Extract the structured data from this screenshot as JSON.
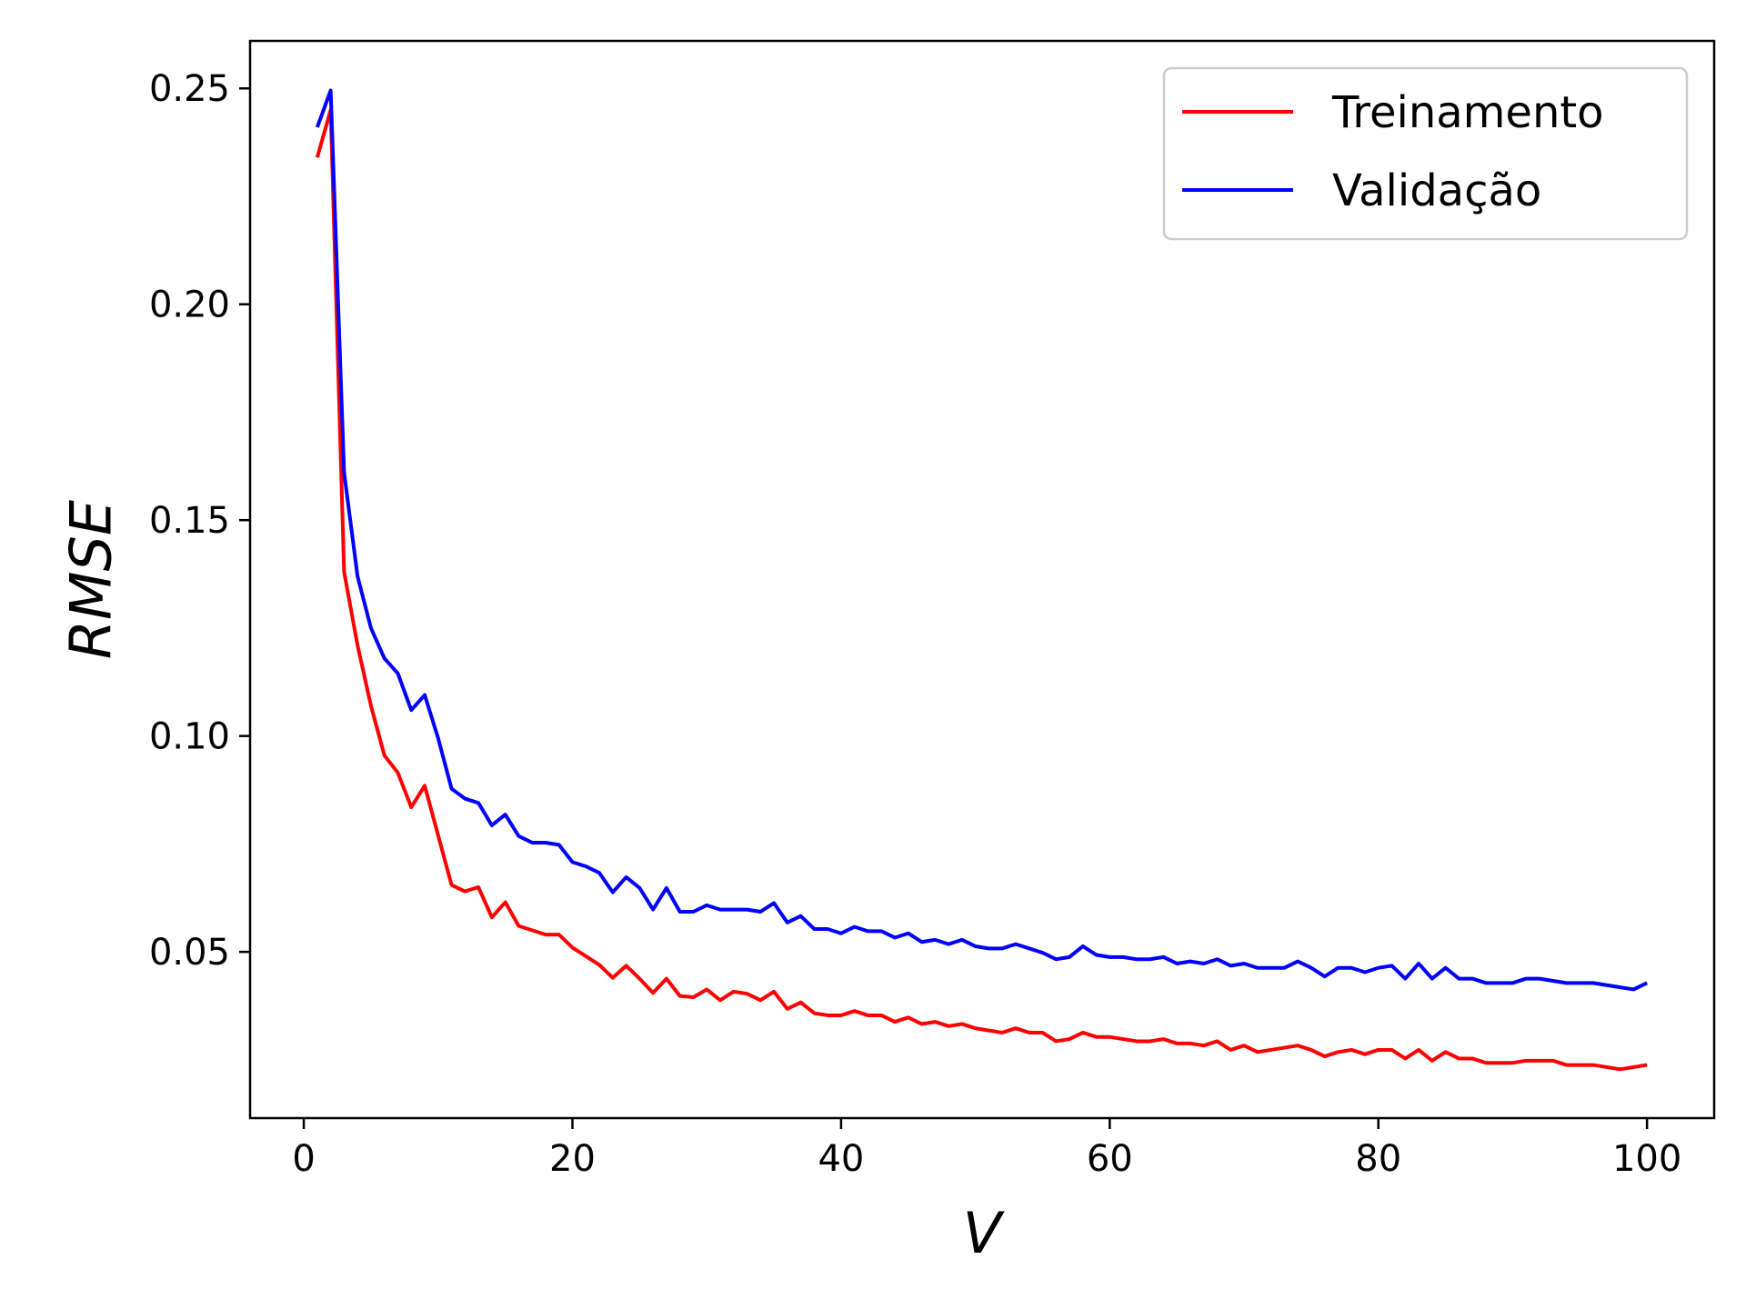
{
  "chart_data": {
    "type": "line",
    "title": "",
    "xlabel": "V",
    "ylabel": "RMSE",
    "xlim": [
      -4,
      105
    ],
    "ylim": [
      0.0115,
      0.261
    ],
    "xticks": [
      0,
      20,
      40,
      60,
      80,
      100
    ],
    "xtick_labels": [
      "0",
      "20",
      "40",
      "60",
      "80",
      "100"
    ],
    "yticks": [
      0.05,
      0.1,
      0.15,
      0.2,
      0.25
    ],
    "ytick_labels": [
      "0.05",
      "0.10",
      "0.15",
      "0.20",
      "0.25"
    ],
    "grid": false,
    "legend_position": "top-right",
    "series": [
      {
        "name": "Treinamento",
        "color": "#ff0000",
        "x": [
          1,
          2,
          3,
          4,
          5,
          6,
          7,
          8,
          9,
          10,
          11,
          12,
          13,
          14,
          15,
          16,
          17,
          18,
          19,
          20,
          21,
          22,
          23,
          24,
          25,
          26,
          27,
          28,
          29,
          30,
          31,
          32,
          33,
          34,
          35,
          36,
          37,
          38,
          39,
          40,
          41,
          42,
          43,
          44,
          45,
          46,
          47,
          48,
          49,
          50,
          51,
          52,
          53,
          54,
          55,
          56,
          57,
          58,
          59,
          60,
          61,
          62,
          63,
          64,
          65,
          66,
          67,
          68,
          69,
          70,
          71,
          72,
          73,
          74,
          75,
          76,
          77,
          78,
          79,
          80,
          81,
          82,
          83,
          84,
          85,
          86,
          87,
          88,
          89,
          90,
          91,
          92,
          93,
          94,
          95,
          96,
          97,
          98,
          99,
          100
        ],
        "values": [
          0.234,
          0.245,
          0.138,
          0.121,
          0.107,
          0.0955,
          0.0915,
          0.0835,
          0.0885,
          0.077,
          0.0655,
          0.064,
          0.065,
          0.058,
          0.0615,
          0.056,
          0.055,
          0.054,
          0.054,
          0.051,
          0.049,
          0.047,
          0.044,
          0.0468,
          0.0438,
          0.0405,
          0.0438,
          0.0398,
          0.0395,
          0.0413,
          0.0388,
          0.0408,
          0.0403,
          0.0388,
          0.0408,
          0.0368,
          0.0383,
          0.0358,
          0.0353,
          0.0353,
          0.0363,
          0.0353,
          0.0353,
          0.0338,
          0.0348,
          0.0333,
          0.0338,
          0.0328,
          0.0333,
          0.0323,
          0.0318,
          0.0313,
          0.0323,
          0.0313,
          0.0313,
          0.0293,
          0.0298,
          0.0313,
          0.0303,
          0.0303,
          0.0298,
          0.0293,
          0.0293,
          0.0298,
          0.0288,
          0.0288,
          0.0283,
          0.0293,
          0.0273,
          0.0283,
          0.0268,
          0.0273,
          0.0278,
          0.0283,
          0.0273,
          0.0258,
          0.0268,
          0.0273,
          0.0263,
          0.0273,
          0.0273,
          0.0253,
          0.0273,
          0.0248,
          0.0268,
          0.0253,
          0.0253,
          0.0243,
          0.0243,
          0.0243,
          0.0248,
          0.0248,
          0.0248,
          0.0238,
          0.0238,
          0.0238,
          0.0233,
          0.0228,
          0.0233,
          0.0238
        ]
      },
      {
        "name": "Validação",
        "color": "#0000ff",
        "x": [
          1,
          2,
          3,
          4,
          5,
          6,
          7,
          8,
          9,
          10,
          11,
          12,
          13,
          14,
          15,
          16,
          17,
          18,
          19,
          20,
          21,
          22,
          23,
          24,
          25,
          26,
          27,
          28,
          29,
          30,
          31,
          32,
          33,
          34,
          35,
          36,
          37,
          38,
          39,
          40,
          41,
          42,
          43,
          44,
          45,
          46,
          47,
          48,
          49,
          50,
          51,
          52,
          53,
          54,
          55,
          56,
          57,
          58,
          59,
          60,
          61,
          62,
          63,
          64,
          65,
          66,
          67,
          68,
          69,
          70,
          71,
          72,
          73,
          74,
          75,
          76,
          77,
          78,
          79,
          80,
          81,
          82,
          83,
          84,
          85,
          86,
          87,
          88,
          89,
          90,
          91,
          92,
          93,
          94,
          95,
          96,
          97,
          98,
          99,
          100
        ],
        "values": [
          0.241,
          0.2495,
          0.161,
          0.137,
          0.125,
          0.118,
          0.1145,
          0.106,
          0.1095,
          0.0995,
          0.0878,
          0.0855,
          0.0845,
          0.0793,
          0.0818,
          0.0768,
          0.0753,
          0.0753,
          0.0748,
          0.0708,
          0.0698,
          0.0683,
          0.0638,
          0.0673,
          0.0648,
          0.0598,
          0.0648,
          0.0593,
          0.0593,
          0.0608,
          0.0598,
          0.0598,
          0.0598,
          0.0593,
          0.0613,
          0.0568,
          0.0583,
          0.0553,
          0.0553,
          0.0543,
          0.0558,
          0.0548,
          0.0548,
          0.0533,
          0.0543,
          0.0523,
          0.0528,
          0.0518,
          0.0528,
          0.0513,
          0.0508,
          0.0508,
          0.0518,
          0.0508,
          0.0498,
          0.0483,
          0.0488,
          0.0513,
          0.0493,
          0.0488,
          0.0488,
          0.0483,
          0.0483,
          0.0488,
          0.0473,
          0.0478,
          0.0473,
          0.0483,
          0.0468,
          0.0473,
          0.0463,
          0.0463,
          0.0463,
          0.0478,
          0.0463,
          0.0443,
          0.0463,
          0.0463,
          0.0453,
          0.0463,
          0.0468,
          0.0438,
          0.0473,
          0.0438,
          0.0463,
          0.0438,
          0.0438,
          0.0428,
          0.0428,
          0.0428,
          0.0438,
          0.0438,
          0.0433,
          0.0428,
          0.0428,
          0.0428,
          0.0423,
          0.0418,
          0.0413,
          0.0428
        ]
      }
    ]
  }
}
